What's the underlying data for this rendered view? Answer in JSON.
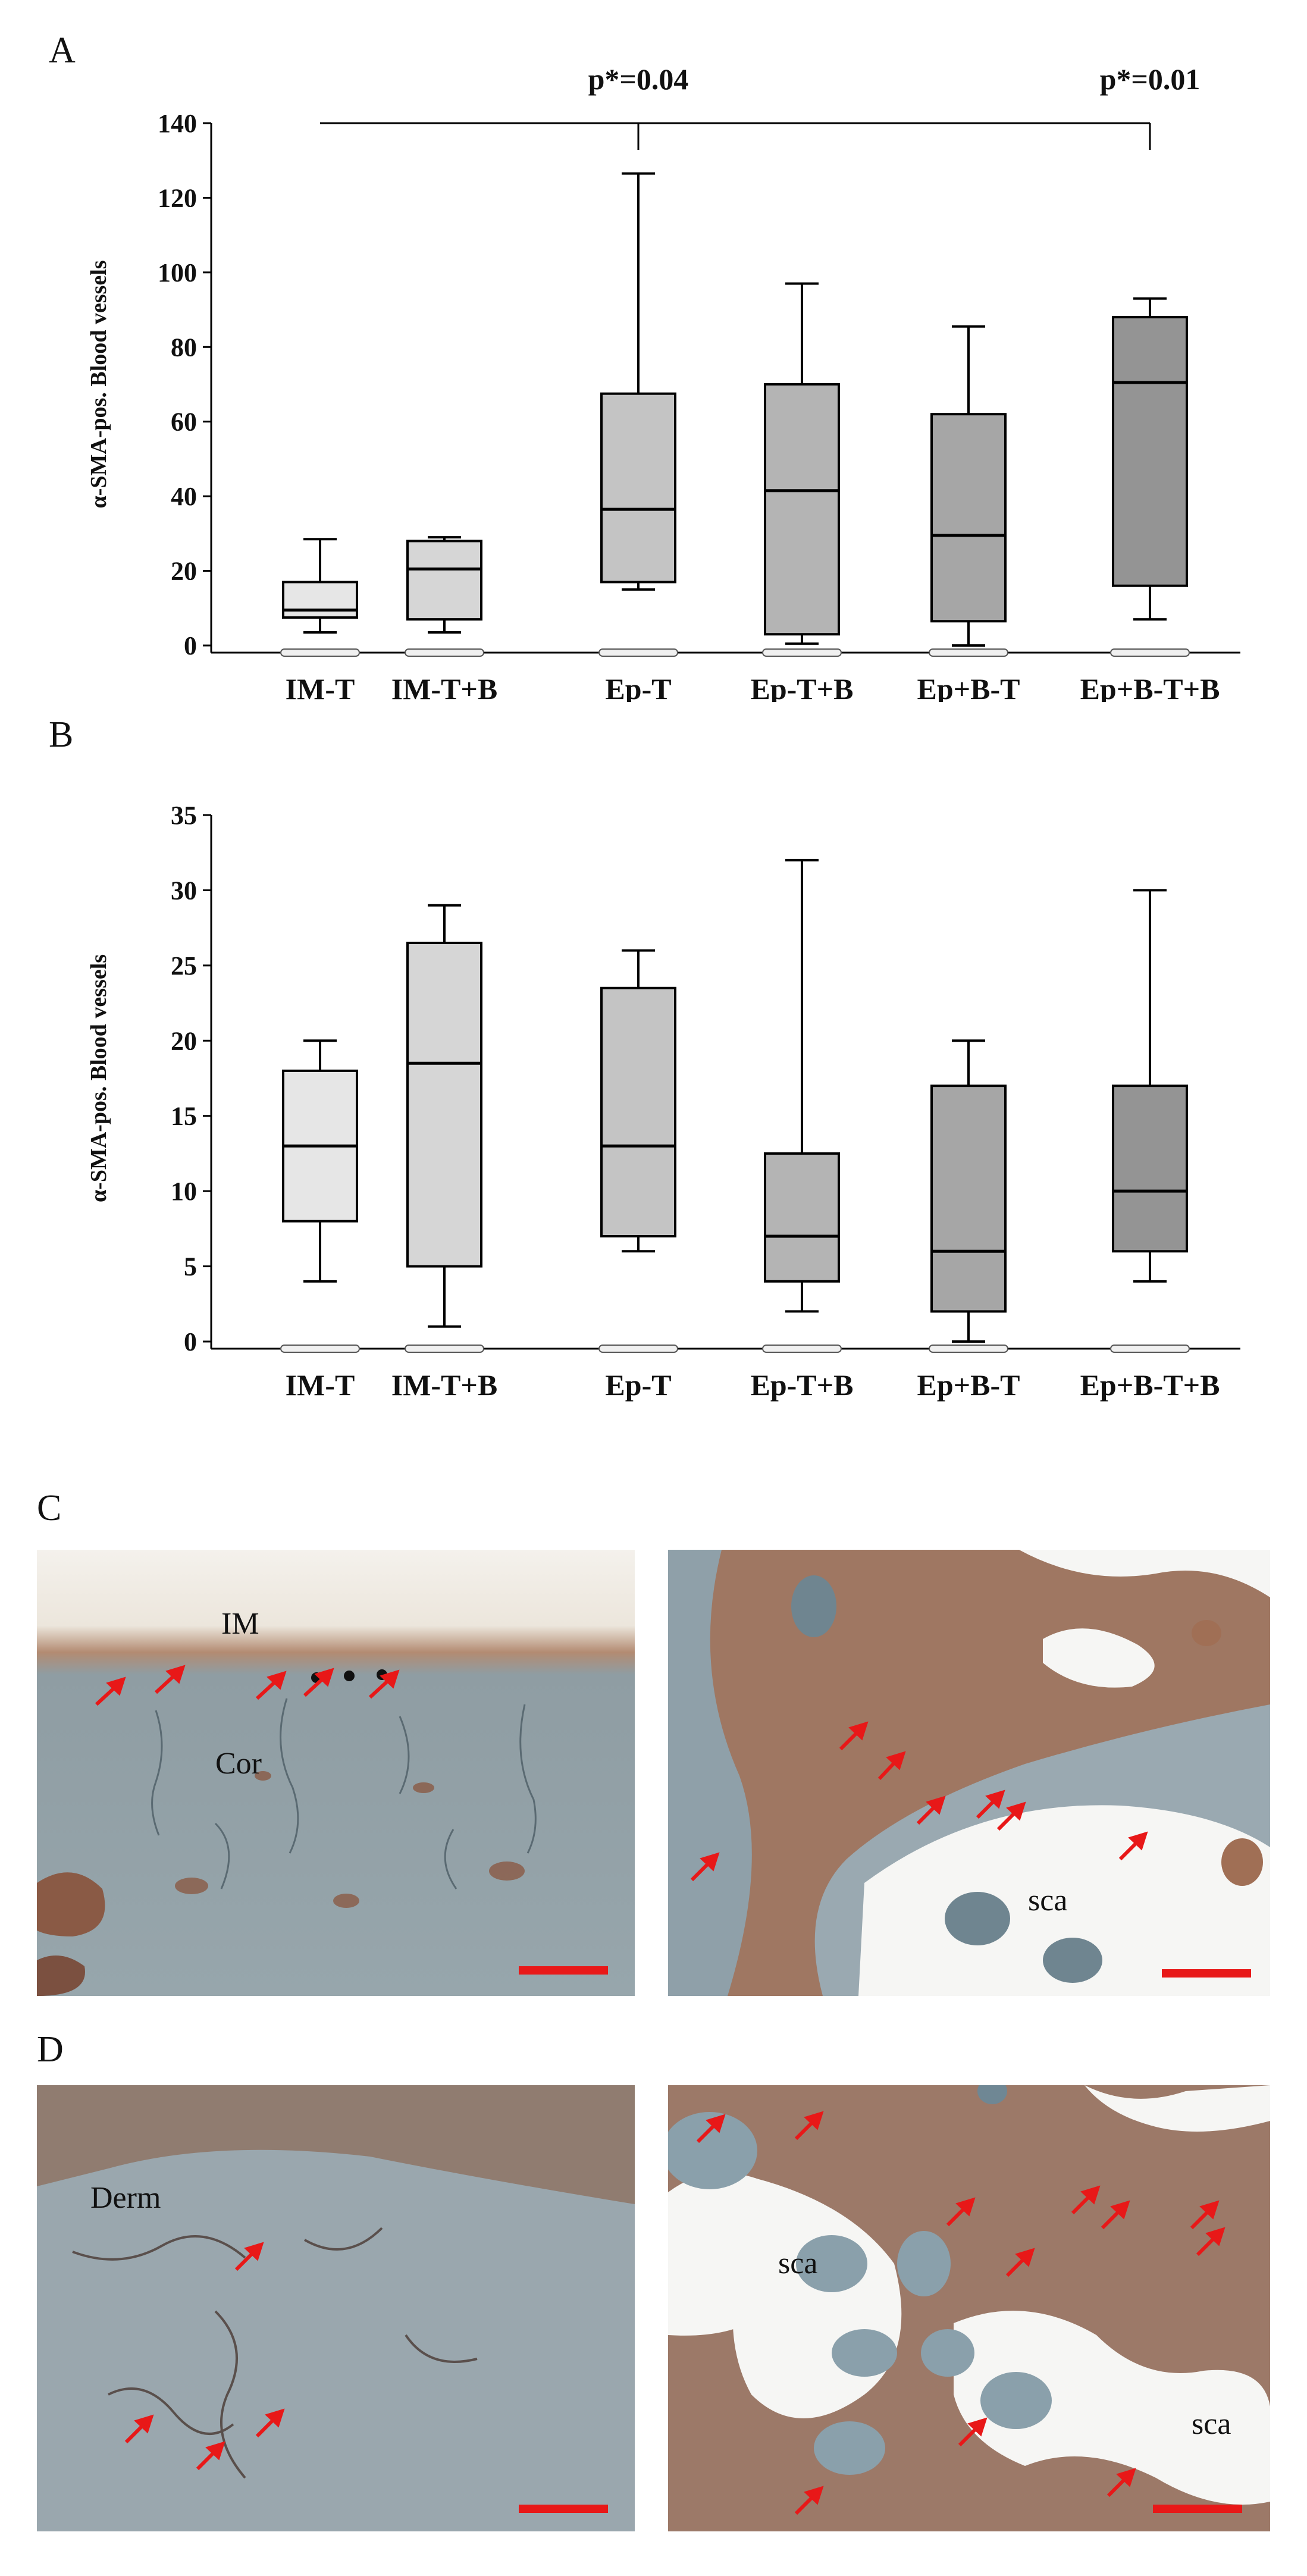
{
  "panels": {
    "a": "A",
    "b": "B",
    "c": "C",
    "d": "D"
  },
  "chart_data": [
    {
      "type": "box",
      "panel": "A",
      "ylabel": "α-SMA-pos. Blood vessels",
      "ylim": [
        0,
        140
      ],
      "yticks": [
        0,
        20,
        40,
        60,
        80,
        100,
        120,
        140
      ],
      "categories": [
        "IM-T",
        "IM-T+B",
        "Ep-T",
        "Ep-T+B",
        "Ep+B-T",
        "Ep+B-T+B"
      ],
      "fill_colors": [
        "#e6e6e6",
        "#d6d6d6",
        "#c4c4c4",
        "#b4b4b4",
        "#a6a6a6",
        "#949494"
      ],
      "boxes": [
        {
          "category": "IM-T",
          "min": 3.5,
          "q1": 7.5,
          "median": 9.5,
          "q3": 17,
          "max": 28.5
        },
        {
          "category": "IM-T+B",
          "min": 3.5,
          "q1": 7,
          "median": 20.5,
          "q3": 28,
          "max": 29
        },
        {
          "category": "Ep-T",
          "min": 15,
          "q1": 17,
          "median": 36.5,
          "q3": 67.5,
          "max": 126.5
        },
        {
          "category": "Ep-T+B",
          "min": 0.5,
          "q1": 3,
          "median": 41.5,
          "q3": 70,
          "max": 97
        },
        {
          "category": "Ep+B-T",
          "min": 0,
          "q1": 6.5,
          "median": 29.5,
          "q3": 62,
          "max": 85.5
        },
        {
          "category": "Ep+B-T+B",
          "min": 7,
          "q1": 16,
          "median": 70.5,
          "q3": 88,
          "max": 93
        }
      ],
      "annotations": [
        {
          "text": "p*=0.04",
          "from": "IM-T",
          "to": "Ep-T"
        },
        {
          "text": "p*=0.01",
          "from": "IM-T",
          "to": "Ep+B-T+B"
        }
      ]
    },
    {
      "type": "box",
      "panel": "B",
      "ylabel": "α-SMA-pos. Blood vessels",
      "ylim": [
        0,
        35
      ],
      "yticks": [
        0,
        5,
        10,
        15,
        20,
        25,
        30,
        35
      ],
      "categories": [
        "IM-T",
        "IM-T+B",
        "Ep-T",
        "Ep-T+B",
        "Ep+B-T",
        "Ep+B-T+B"
      ],
      "fill_colors": [
        "#e6e6e6",
        "#d6d6d6",
        "#c4c4c4",
        "#b4b4b4",
        "#a6a6a6",
        "#949494"
      ],
      "boxes": [
        {
          "category": "IM-T",
          "min": 4,
          "q1": 8,
          "median": 13,
          "q3": 18,
          "max": 20
        },
        {
          "category": "IM-T+B",
          "min": 1,
          "q1": 5,
          "median": 18.5,
          "q3": 26.5,
          "max": 29
        },
        {
          "category": "Ep-T",
          "min": 6,
          "q1": 7,
          "median": 13,
          "q3": 23.5,
          "max": 26
        },
        {
          "category": "Ep-T+B",
          "min": 2,
          "q1": 4,
          "median": 7,
          "q3": 12.5,
          "max": 32
        },
        {
          "category": "Ep+B-T",
          "min": 0,
          "q1": 2,
          "median": 6,
          "q3": 17,
          "max": 20
        },
        {
          "category": "Ep+B-T+B",
          "min": 4,
          "q1": 6,
          "median": 10,
          "q3": 17,
          "max": 30
        }
      ]
    }
  ],
  "micrographs": {
    "c_left": {
      "labels": [
        "IM",
        "Cor"
      ]
    },
    "c_right": {
      "labels": [
        "sca"
      ]
    },
    "d_left": {
      "labels": [
        "Derm"
      ]
    },
    "d_right": {
      "labels": [
        "sca",
        "sca"
      ]
    }
  }
}
